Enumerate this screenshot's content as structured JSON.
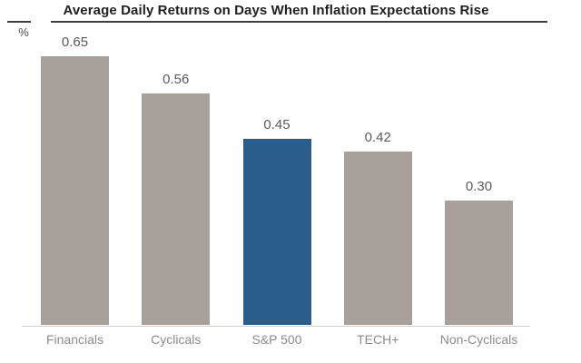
{
  "chart": {
    "title": "Average Daily Returns on Days When Inflation Expectations Rise",
    "unit_label": "%"
  },
  "chart_data": {
    "type": "bar",
    "title": "Average Daily Returns on Days When Inflation Expectations Rise",
    "xlabel": "",
    "ylabel": "%",
    "categories": [
      "Financials",
      "Cyclicals",
      "S&P 500",
      "TECH+",
      "Non-Cyclicals"
    ],
    "values": [
      0.65,
      0.56,
      0.45,
      0.42,
      0.3
    ],
    "value_labels": [
      "0.65",
      "0.56",
      "0.45",
      "0.42",
      "0.30"
    ],
    "highlight_category": "S&P 500",
    "ylim": [
      0,
      0.78
    ],
    "grid": false,
    "legend": "none",
    "data_labels_position": "above-bars",
    "colors": {
      "bar_default": "#a8a09b",
      "bar_highlight": "#2a5d8b",
      "value_label": "#5a5a5a",
      "category_label": "#8b8b8b",
      "axis_line": "#d0cfcd",
      "title_text": "#1f1f1f",
      "title_rule": "#3f3f3f"
    }
  }
}
